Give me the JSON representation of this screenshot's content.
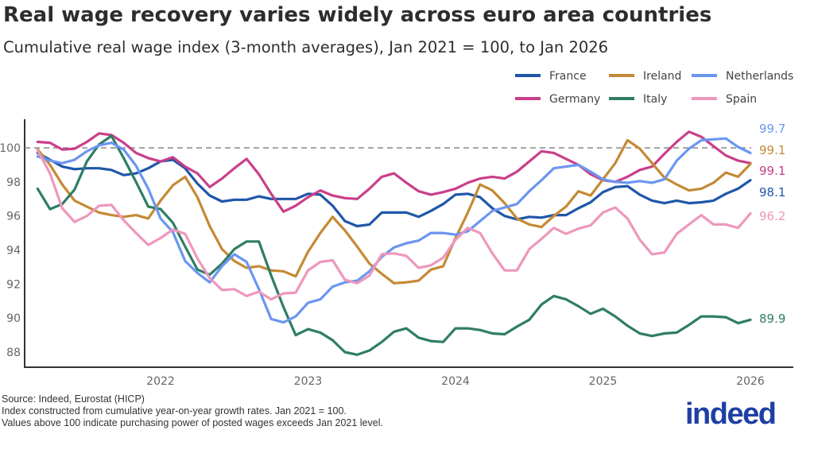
{
  "title": "Real wage recovery varies widely across euro area countries",
  "subtitle": "Cumulative real wage index (3-month averages), Jan 2021 = 100, to Jan 2026",
  "footer": {
    "source": "Source: Indeed, Eurostat (HICP)",
    "note1": "Index constructed from cumulative year-on-year growth rates. Jan 2021 = 100.",
    "note2": "Values above 100 indicate purchasing power of posted wages exceeds Jan 2021 level."
  },
  "logo_text": "indeed",
  "chart_data": {
    "type": "line",
    "title": "Real wage recovery varies widely across euro area countries",
    "xlabel": "",
    "ylabel": "",
    "ylim": [
      87,
      101.8
    ],
    "yticks": [
      88,
      90,
      92,
      94,
      96,
      98,
      100
    ],
    "xticks": [
      "2022",
      "2023",
      "2024",
      "2025",
      "2026"
    ],
    "reference_line": {
      "y": 100,
      "style": "dashed",
      "color": "#888888"
    },
    "grid": false,
    "legend_placement": "top-right",
    "x": [
      "2021-03",
      "2021-04",
      "2021-05",
      "2021-06",
      "2021-07",
      "2021-08",
      "2021-09",
      "2021-10",
      "2021-11",
      "2021-12",
      "2022-01",
      "2022-02",
      "2022-03",
      "2022-04",
      "2022-05",
      "2022-06",
      "2022-07",
      "2022-08",
      "2022-09",
      "2022-10",
      "2022-11",
      "2022-12",
      "2023-01",
      "2023-02",
      "2023-03",
      "2023-04",
      "2023-05",
      "2023-06",
      "2023-07",
      "2023-08",
      "2023-09",
      "2023-10",
      "2023-11",
      "2023-12",
      "2024-01",
      "2024-02",
      "2024-03",
      "2024-04",
      "2024-05",
      "2024-06",
      "2024-07",
      "2024-08",
      "2024-09",
      "2024-10",
      "2024-11",
      "2024-12",
      "2025-01",
      "2025-02",
      "2025-03",
      "2025-04",
      "2025-05",
      "2025-06",
      "2025-07",
      "2025-08",
      "2025-09",
      "2025-10",
      "2025-11",
      "2025-12",
      "2026-01"
    ],
    "series": [
      {
        "name": "France",
        "color": "#1f57a8",
        "end_label": "98.1",
        "values": [
          99.7,
          99.3,
          98.9,
          98.75,
          98.8,
          98.8,
          98.7,
          98.4,
          98.5,
          98.8,
          99.2,
          99.3,
          98.8,
          97.9,
          97.2,
          96.85,
          96.95,
          96.95,
          97.15,
          97.0,
          97.0,
          97.0,
          97.3,
          97.25,
          96.6,
          95.7,
          95.4,
          95.5,
          96.2,
          96.2,
          96.2,
          95.95,
          96.3,
          96.7,
          97.25,
          97.3,
          97.1,
          96.45,
          96.0,
          95.8,
          95.95,
          95.9,
          96.05,
          96.05,
          96.45,
          96.8,
          97.4,
          97.7,
          97.75,
          97.25,
          96.9,
          96.75,
          96.9,
          96.75,
          96.8,
          96.9,
          97.3,
          97.6,
          98.1
        ]
      },
      {
        "name": "Germany",
        "color": "#c93f8a",
        "end_label": "99.1",
        "values": [
          100.35,
          100.3,
          99.9,
          99.95,
          100.35,
          100.85,
          100.75,
          100.3,
          99.7,
          99.4,
          99.2,
          99.45,
          98.9,
          98.5,
          97.7,
          98.2,
          98.8,
          99.35,
          98.45,
          97.3,
          96.25,
          96.6,
          97.1,
          97.5,
          97.2,
          97.05,
          97.0,
          97.6,
          98.3,
          98.5,
          97.95,
          97.45,
          97.25,
          97.4,
          97.6,
          97.95,
          98.2,
          98.3,
          98.2,
          98.6,
          99.2,
          99.8,
          99.7,
          99.35,
          99.0,
          98.45,
          98.1,
          98.0,
          98.3,
          98.7,
          98.9,
          99.65,
          100.35,
          100.95,
          100.65,
          100.1,
          99.55,
          99.25,
          99.1
        ]
      },
      {
        "name": "Ireland",
        "color": "#c48a35",
        "end_label": "99.1",
        "values": [
          99.9,
          99.0,
          97.85,
          96.9,
          96.55,
          96.2,
          96.05,
          95.95,
          96.05,
          95.85,
          96.9,
          97.8,
          98.3,
          97.1,
          95.4,
          94.05,
          93.35,
          92.95,
          93.05,
          92.8,
          92.75,
          92.45,
          93.9,
          95.0,
          95.95,
          95.15,
          94.2,
          93.2,
          92.6,
          92.05,
          92.1,
          92.2,
          92.85,
          93.05,
          94.7,
          96.2,
          97.85,
          97.5,
          96.75,
          95.85,
          95.5,
          95.35,
          96.0,
          96.55,
          97.45,
          97.2,
          98.15,
          99.1,
          100.45,
          99.95,
          99.1,
          98.25,
          97.85,
          97.5,
          97.6,
          97.95,
          98.55,
          98.3,
          99.05
        ]
      },
      {
        "name": "Italy",
        "color": "#2f7d66",
        "end_label": "89.9",
        "values": [
          97.6,
          96.4,
          96.7,
          97.55,
          99.2,
          100.2,
          100.7,
          99.4,
          98.0,
          96.55,
          96.4,
          95.6,
          94.2,
          92.85,
          92.55,
          93.2,
          94.05,
          94.5,
          94.5,
          92.5,
          90.65,
          89.0,
          89.35,
          89.15,
          88.7,
          88.0,
          87.85,
          88.1,
          88.6,
          89.2,
          89.4,
          88.85,
          88.65,
          88.6,
          89.4,
          89.4,
          89.3,
          89.1,
          89.05,
          89.5,
          89.9,
          90.8,
          91.3,
          91.1,
          90.7,
          90.25,
          90.55,
          90.1,
          89.55,
          89.1,
          88.95,
          89.1,
          89.15,
          89.6,
          90.1,
          90.1,
          90.05,
          89.7,
          89.9
        ]
      },
      {
        "name": "Netherlands",
        "color": "#6b96f0",
        "end_label": "99.7",
        "values": [
          99.5,
          99.25,
          99.1,
          99.3,
          99.8,
          100.15,
          100.3,
          99.9,
          98.95,
          97.6,
          95.85,
          95.05,
          93.35,
          92.65,
          92.1,
          93.05,
          93.75,
          93.3,
          91.7,
          89.95,
          89.75,
          90.1,
          90.9,
          91.1,
          91.85,
          92.1,
          92.2,
          92.75,
          93.6,
          94.15,
          94.4,
          94.55,
          95.0,
          95.0,
          94.9,
          95.1,
          95.7,
          96.3,
          96.5,
          96.7,
          97.45,
          98.1,
          98.8,
          98.9,
          99.0,
          98.6,
          98.15,
          98.0,
          97.95,
          98.05,
          97.95,
          98.15,
          99.25,
          99.95,
          100.45,
          100.5,
          100.55,
          100.05,
          99.7
        ]
      },
      {
        "name": "Spain",
        "color": "#ee97bd",
        "end_label": "96.2",
        "values": [
          99.85,
          98.5,
          96.45,
          95.65,
          96.0,
          96.6,
          96.65,
          95.75,
          95.0,
          94.3,
          94.7,
          95.2,
          94.95,
          93.5,
          92.35,
          91.65,
          91.7,
          91.3,
          91.55,
          91.1,
          91.45,
          91.5,
          92.8,
          93.3,
          93.4,
          92.25,
          92.05,
          92.5,
          93.75,
          93.8,
          93.65,
          92.95,
          93.1,
          93.55,
          94.6,
          95.3,
          95.0,
          93.8,
          92.8,
          92.8,
          94.05,
          94.65,
          95.3,
          94.95,
          95.25,
          95.45,
          96.2,
          96.5,
          95.85,
          94.6,
          93.75,
          93.85,
          94.95,
          95.5,
          96.05,
          95.5,
          95.5,
          95.3,
          96.15
        ]
      }
    ]
  }
}
